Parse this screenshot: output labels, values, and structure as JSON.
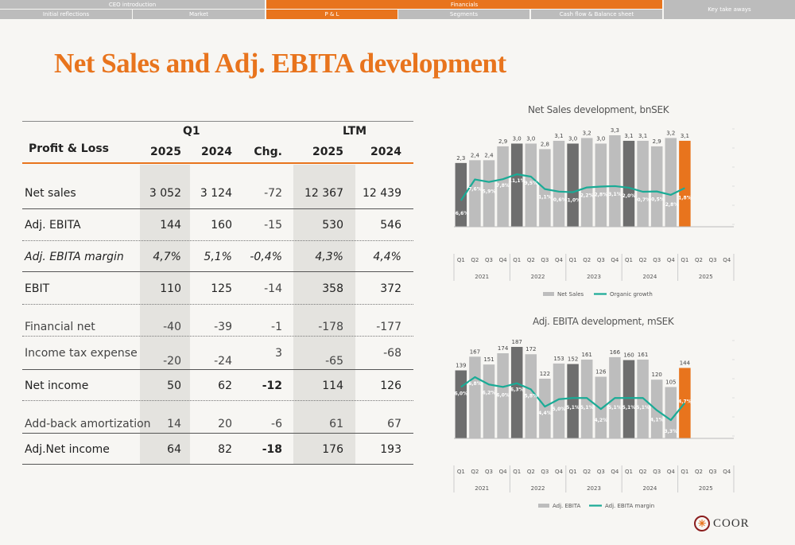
{
  "nav": {
    "sections": [
      {
        "label": "CEO introduction",
        "active": false
      },
      {
        "label": "Financials",
        "active": true
      }
    ],
    "subsections": [
      {
        "label": "Initial reflections",
        "active": false
      },
      {
        "label": "Market",
        "active": false
      },
      {
        "label": "P & L",
        "active": true
      },
      {
        "label": "Segments",
        "active": false
      },
      {
        "label": "Cash flow & Balance sheet",
        "active": false
      }
    ],
    "key_takeaways": "Key take aways"
  },
  "page_title": "Net Sales and Adj. EBITA development",
  "pl_table": {
    "header_q1": "Q1",
    "header_ltm": "LTM",
    "label_header": "Profit & Loss",
    "col_2025": "2025",
    "col_2024": "2024",
    "col_chg": "Chg.",
    "col_ltm_2025": "2025",
    "col_ltm_2024": "2024",
    "rows": [
      {
        "label": "Net sales",
        "q1_2025": "3 052",
        "q1_2024": "3 124",
        "chg": "-72",
        "ltm_2025": "12 367",
        "ltm_2024": "12 439"
      },
      {
        "label": "Adj. EBITA",
        "q1_2025": "144",
        "q1_2024": "160",
        "chg": "-15",
        "ltm_2025": "530",
        "ltm_2024": "546"
      },
      {
        "label": "Adj. EBITA margin",
        "q1_2025": "4,7%",
        "q1_2024": "5,1%",
        "chg": "-0,4%",
        "ltm_2025": "4,3%",
        "ltm_2024": "4,4%"
      },
      {
        "label": "EBIT",
        "q1_2025": "110",
        "q1_2024": "125",
        "chg": "-14",
        "ltm_2025": "358",
        "ltm_2024": "372"
      },
      {
        "label": "Financial net",
        "q1_2025": "-40",
        "q1_2024": "-39",
        "chg": "-1",
        "ltm_2025": "-178",
        "ltm_2024": "-177"
      },
      {
        "label": "Income tax expense",
        "q1_2025": "-20",
        "q1_2024": "-24",
        "chg": "3",
        "ltm_2025": "-65",
        "ltm_2024": "-68"
      },
      {
        "label": "Net income",
        "q1_2025": "50",
        "q1_2024": "62",
        "chg": "-12",
        "ltm_2025": "114",
        "ltm_2024": "126"
      },
      {
        "label": "Add-back amortization",
        "q1_2025": "14",
        "q1_2024": "20",
        "chg": "-6",
        "ltm_2025": "61",
        "ltm_2024": "67"
      },
      {
        "label": "Adj.Net income",
        "q1_2025": "64",
        "q1_2024": "82",
        "chg": "-18",
        "ltm_2025": "176",
        "ltm_2024": "193"
      }
    ]
  },
  "logo_text": "COOR",
  "colors": {
    "accent": "#e8741d",
    "bar_light": "#bdbdbd",
    "bar_dark": "#6e6e6e",
    "line": "#1aab96"
  },
  "chart_data": [
    {
      "type": "bar",
      "title": "Net Sales development, bnSEK",
      "quarters": [
        "Q1",
        "Q2",
        "Q3",
        "Q4",
        "Q1",
        "Q2",
        "Q3",
        "Q4",
        "Q1",
        "Q2",
        "Q3",
        "Q4",
        "Q1",
        "Q2",
        "Q3",
        "Q4",
        "Q1",
        "Q2",
        "Q3",
        "Q4"
      ],
      "years": [
        "2021",
        "2022",
        "2023",
        "2024",
        "2025"
      ],
      "series": [
        {
          "name": "Net Sales",
          "kind": "bar",
          "values": [
            2.3,
            2.4,
            2.4,
            2.9,
            3.0,
            3.0,
            2.8,
            3.1,
            3.0,
            3.2,
            3.0,
            3.3,
            3.1,
            3.1,
            2.9,
            3.2,
            3.1,
            null,
            null,
            null
          ],
          "labels": [
            "2,3",
            "2,4",
            "2,4",
            "2,9",
            "3,0",
            "3,0",
            "2,8",
            "3,1",
            "3,0",
            "3,2",
            "3,0",
            "3,3",
            "3,1",
            "3,1",
            "2,9",
            "3,2",
            "3,1",
            "",
            "",
            ""
          ]
        },
        {
          "name": "Organic growth",
          "kind": "line",
          "values": [
            -6.6,
            7.6,
            5.9,
            7.8,
            11.1,
            9.5,
            1.1,
            -0.6,
            -1.0,
            2.2,
            2.8,
            3.1,
            2.0,
            -0.7,
            -0.5,
            -2.8,
            1.8,
            null,
            null,
            null
          ],
          "labels": [
            "-6,6%",
            "7,6%",
            "5,9%",
            "7,8%",
            "11,1%",
            "9,5%",
            "1,1%",
            "-0,6%",
            "-1,0%",
            "2,2%",
            "2,8%",
            "3,1%",
            "2,0%",
            "-0,7%",
            "-0,5%",
            "-2,8%",
            "1,8%",
            "",
            "",
            ""
          ]
        }
      ]
    },
    {
      "type": "bar",
      "title": "Adj. EBITA development, mSEK",
      "quarters": [
        "Q1",
        "Q2",
        "Q3",
        "Q4",
        "Q1",
        "Q2",
        "Q3",
        "Q4",
        "Q1",
        "Q2",
        "Q3",
        "Q4",
        "Q1",
        "Q2",
        "Q3",
        "Q4",
        "Q1",
        "Q2",
        "Q3",
        "Q4"
      ],
      "years": [
        "2021",
        "2022",
        "2023",
        "2024",
        "2025"
      ],
      "series": [
        {
          "name": "Adj. EBITA",
          "kind": "bar",
          "values": [
            139,
            167,
            151,
            174,
            187,
            172,
            122,
            153,
            152,
            161,
            126,
            166,
            160,
            161,
            120,
            105,
            144,
            null,
            null,
            null
          ],
          "labels": [
            "139",
            "167",
            "151",
            "174",
            "187",
            "172",
            "122",
            "153",
            "152",
            "161",
            "126",
            "166",
            "160",
            "161",
            "120",
            "105",
            "144",
            "",
            "",
            ""
          ]
        },
        {
          "name": "Adj. EBITA margin",
          "kind": "line",
          "values": [
            6.0,
            6.8,
            6.2,
            6.0,
            6.3,
            5.8,
            4.4,
            5.0,
            5.1,
            5.1,
            4.2,
            5.1,
            5.1,
            5.1,
            4.1,
            3.3,
            4.7,
            null,
            null,
            null
          ],
          "labels": [
            "6,0%",
            "6,8%",
            "6,2%",
            "6,0%",
            "6,3%",
            "5,8%",
            "4,4%",
            "5,0%",
            "5,1%",
            "5,1%",
            "4,2%",
            "5,1%",
            "5,1%",
            "5,1%",
            "4,1%",
            "3,3%",
            "4,7%",
            "",
            "",
            ""
          ]
        }
      ]
    }
  ]
}
